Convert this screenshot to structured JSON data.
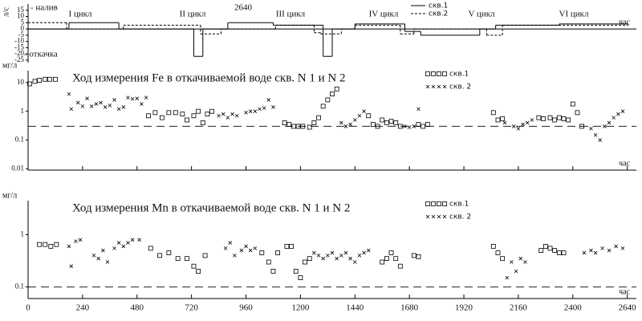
{
  "chart_data": [
    {
      "type": "step",
      "ylabel": "л/с",
      "xlabel": "час",
      "annotations": [
        "- налив",
        "- откачка",
        "I цикл",
        "II цикл",
        "2640",
        "III цикл",
        "IV цикл",
        "V цикл",
        "VI цикл"
      ],
      "xlim": [
        0,
        2680
      ],
      "ylim": [
        -27,
        20
      ],
      "yticks": [
        15,
        10,
        5,
        0,
        -5,
        -10,
        -15,
        -20,
        -25
      ],
      "series": [
        {
          "name": "скв.1",
          "color": "#000",
          "dash": false,
          "x": [
            0,
            180,
            400,
            730,
            770,
            880,
            1080,
            1300,
            1340,
            1440,
            1660,
            1730,
            1990,
            2060,
            2340
          ],
          "values": [
            0,
            5,
            0,
            -22,
            0,
            5,
            3,
            -22,
            0,
            4,
            -2,
            -5,
            0,
            3,
            4
          ]
        },
        {
          "name": "скв.2",
          "color": "#000",
          "dash": true,
          "x": [
            0,
            170,
            420,
            760,
            850,
            1090,
            1260,
            1290,
            1380,
            1440,
            1640,
            1700,
            2020,
            2090
          ],
          "values": [
            5,
            0,
            3,
            -4,
            0,
            3,
            -3,
            -4,
            0,
            3,
            -4,
            0,
            -5,
            3
          ]
        }
      ]
    },
    {
      "type": "scatter",
      "title": "Ход измерения Fe в откачиваемой воде скв. N 1 и  N 2",
      "ylabel": "мг/л",
      "xlabel": "час",
      "log_y": true,
      "xlim": [
        0,
        2680
      ],
      "ylim": [
        0.009,
        26
      ],
      "yticks": [
        10,
        1,
        0.1,
        0.01
      ],
      "xticks": [
        0,
        240,
        480,
        720,
        960,
        1200,
        1440,
        1680,
        1920,
        2160,
        2400,
        2640
      ],
      "xtick_labels": false,
      "hline": 0.3,
      "series": [
        {
          "name": "скв.1",
          "color": "#000",
          "marker": "square",
          "x": [
            7,
            30,
            50,
            75,
            95,
            120,
            530,
            560,
            590,
            620,
            650,
            680,
            700,
            730,
            750,
            770,
            790,
            810,
            1130,
            1150,
            1170,
            1190,
            1210,
            1240,
            1260,
            1280,
            1300,
            1320,
            1340,
            1360,
            1500,
            1520,
            1540,
            1560,
            1580,
            1600,
            1620,
            1640,
            1720,
            1740,
            1760,
            2050,
            2070,
            2090,
            2250,
            2270,
            2300,
            2320,
            2340,
            2360,
            2380,
            2400,
            2420,
            2440
          ],
          "values": [
            9,
            11,
            12,
            13,
            13,
            13,
            0.7,
            0.9,
            0.6,
            0.9,
            0.9,
            0.8,
            0.5,
            0.7,
            1.0,
            0.4,
            0.8,
            1.0,
            0.4,
            0.35,
            0.3,
            0.3,
            0.3,
            0.28,
            0.4,
            0.6,
            1.5,
            2.5,
            4,
            6,
            0.7,
            0.35,
            0.3,
            0.5,
            0.4,
            0.45,
            0.4,
            0.3,
            0.35,
            0.3,
            0.35,
            0.9,
            0.5,
            0.55,
            0.6,
            0.55,
            0.6,
            0.5,
            0.6,
            0.55,
            0.5,
            1.8,
            0.9,
            0.3
          ]
        },
        {
          "name": "скв. 2",
          "color": "#000",
          "marker": "cross",
          "x": [
            180,
            190,
            220,
            240,
            260,
            280,
            300,
            320,
            340,
            360,
            380,
            400,
            420,
            440,
            460,
            480,
            500,
            520,
            840,
            860,
            880,
            900,
            920,
            960,
            980,
            1000,
            1020,
            1040,
            1060,
            1080,
            1380,
            1400,
            1420,
            1440,
            1460,
            1480,
            1660,
            1680,
            1700,
            1720,
            2100,
            2140,
            2160,
            2180,
            2200,
            2220,
            2480,
            2500,
            2520,
            2540,
            2560,
            2580,
            2600,
            2620
          ],
          "values": [
            4,
            1.2,
            2,
            1.5,
            2.8,
            1.5,
            1.8,
            2,
            1.4,
            1.6,
            2.5,
            1.2,
            1.4,
            3,
            2.7,
            2.8,
            1.8,
            3,
            0.7,
            0.8,
            0.6,
            0.8,
            0.7,
            0.9,
            1.0,
            1.0,
            1.2,
            1.3,
            2.5,
            1.4,
            0.4,
            0.3,
            0.35,
            0.5,
            0.7,
            1.0,
            0.3,
            0.28,
            0.3,
            1.2,
            0.4,
            0.3,
            0.25,
            0.35,
            0.4,
            0.5,
            0.25,
            0.15,
            0.1,
            0.3,
            0.4,
            0.6,
            0.8,
            1.0
          ]
        }
      ]
    },
    {
      "type": "scatter",
      "title": "Ход измерения Mn в откачиваемой воде скв. N 1 и  N 2",
      "ylabel": "мг/л",
      "xlabel": "час",
      "log_y": true,
      "xlim": [
        0,
        2680
      ],
      "ylim": [
        0.06,
        4.5
      ],
      "yticks": [
        1,
        0.1
      ],
      "xticks": [
        0,
        240,
        480,
        720,
        960,
        1200,
        1440,
        1680,
        1920,
        2160,
        2400,
        2640
      ],
      "xtick_labels": true,
      "hline": 0.1,
      "series": [
        {
          "name": "скв.1",
          "color": "#000",
          "marker": "square",
          "x": [
            50,
            75,
            100,
            125,
            540,
            580,
            620,
            660,
            700,
            730,
            750,
            780,
            1030,
            1060,
            1080,
            1100,
            1140,
            1160,
            1180,
            1200,
            1220,
            1240,
            1560,
            1580,
            1600,
            1620,
            1640,
            1700,
            1720,
            2050,
            2070,
            2090,
            2260,
            2280,
            2300,
            2320,
            2340,
            2360
          ],
          "values": [
            0.65,
            0.65,
            0.6,
            0.65,
            0.55,
            0.4,
            0.45,
            0.35,
            0.35,
            0.25,
            0.2,
            0.4,
            0.45,
            0.3,
            0.2,
            0.45,
            0.6,
            0.6,
            0.2,
            0.15,
            0.3,
            0.35,
            0.3,
            0.35,
            0.45,
            0.35,
            0.25,
            0.4,
            0.38,
            0.6,
            0.45,
            0.35,
            0.5,
            0.6,
            0.55,
            0.5,
            0.45,
            0.45
          ]
        },
        {
          "name": "скв. 2",
          "color": "#000",
          "marker": "cross",
          "x": [
            180,
            190,
            210,
            230,
            290,
            310,
            330,
            350,
            380,
            400,
            420,
            440,
            460,
            490,
            870,
            890,
            910,
            940,
            960,
            980,
            1000,
            1260,
            1280,
            1300,
            1320,
            1340,
            1360,
            1380,
            1400,
            1420,
            1440,
            1460,
            1480,
            1500,
            2110,
            2130,
            2150,
            2170,
            2190,
            2450,
            2480,
            2500,
            2530,
            2560,
            2590,
            2620
          ],
          "values": [
            0.6,
            0.25,
            0.75,
            0.8,
            0.4,
            0.35,
            0.5,
            0.3,
            0.55,
            0.7,
            0.6,
            0.7,
            0.8,
            0.8,
            0.55,
            0.7,
            0.4,
            0.5,
            0.6,
            0.5,
            0.55,
            0.45,
            0.4,
            0.35,
            0.4,
            0.45,
            0.35,
            0.4,
            0.45,
            0.35,
            0.3,
            0.4,
            0.45,
            0.5,
            0.15,
            0.3,
            0.2,
            0.35,
            0.3,
            0.45,
            0.5,
            0.45,
            0.55,
            0.5,
            0.6,
            0.55
          ]
        }
      ]
    }
  ]
}
